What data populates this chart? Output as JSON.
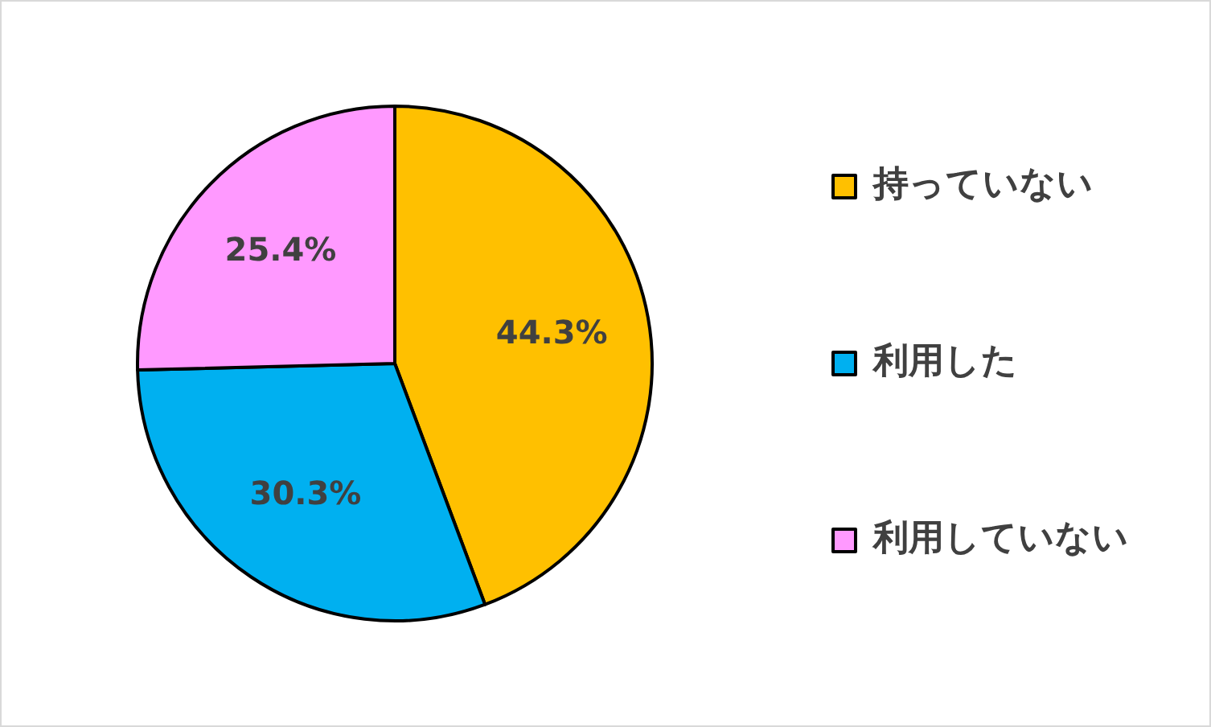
{
  "chart_data": {
    "type": "pie",
    "categories": [
      "持っていない",
      "利用した",
      "利用していない"
    ],
    "values": [
      44.3,
      30.3,
      25.4
    ],
    "colors": [
      "#ffc000",
      "#00b0f0",
      "#ff99ff"
    ],
    "value_labels": [
      "44.3%",
      "30.3%",
      "25.4%"
    ],
    "legend": "right"
  }
}
